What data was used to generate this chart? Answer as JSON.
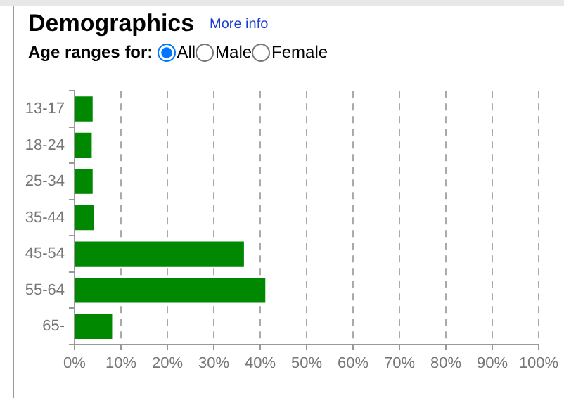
{
  "chart_data": {
    "type": "bar",
    "orientation": "horizontal",
    "title": "Demographics",
    "annotations": [
      "More info",
      "Age ranges for:",
      "All",
      "Male",
      "Female"
    ],
    "categories": [
      "13-17",
      "18-24",
      "25-34",
      "35-44",
      "45-54",
      "55-64",
      "65-"
    ],
    "values": [
      3.9,
      3.7,
      3.9,
      4.1,
      36.5,
      41.1,
      8.1
    ],
    "color": "#008800",
    "xlim": [
      0,
      100
    ],
    "xticks": [
      {
        "value": 0,
        "label": "0%"
      },
      {
        "value": 10,
        "label": "10%"
      },
      {
        "value": 20,
        "label": "20%"
      },
      {
        "value": 30,
        "label": "30%"
      },
      {
        "value": 40,
        "label": "40%"
      },
      {
        "value": 50,
        "label": "50%"
      },
      {
        "value": 60,
        "label": "60%"
      },
      {
        "value": 70,
        "label": "70%"
      },
      {
        "value": 80,
        "label": "80%"
      },
      {
        "value": 90,
        "label": "90%"
      },
      {
        "value": 100,
        "label": "100%"
      }
    ],
    "grid": "x"
  }
}
